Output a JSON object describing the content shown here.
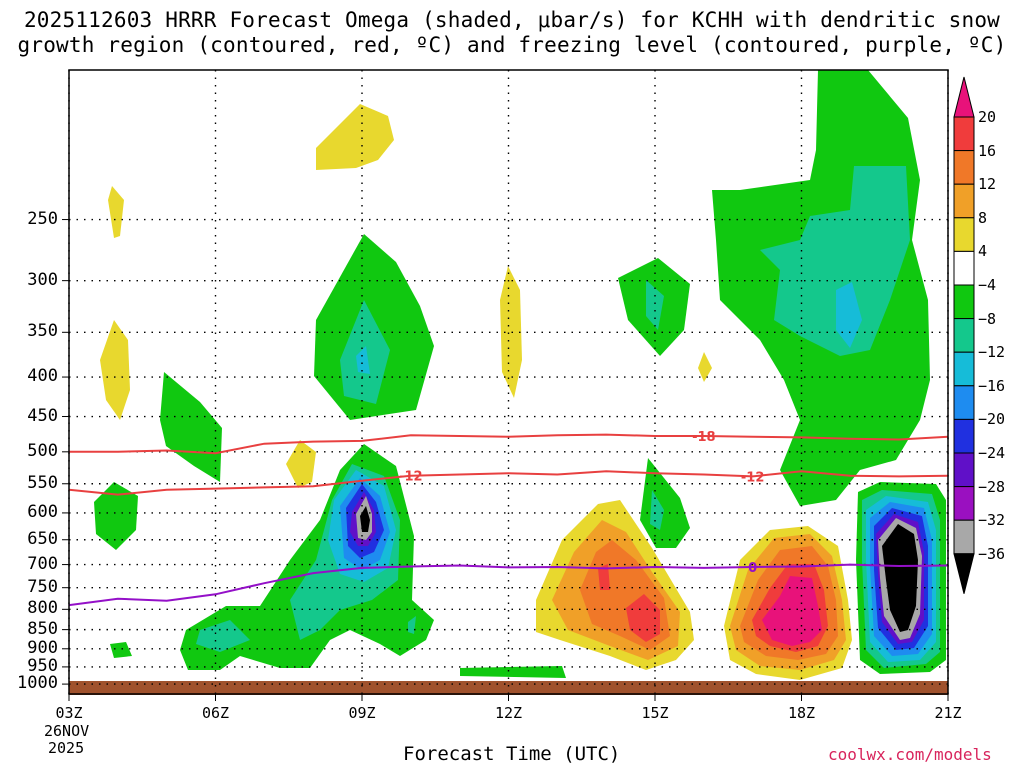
{
  "title": {
    "line1": "2025112603 HRRR Forecast Omega (shaded, μbar/s) for KCHH with dendritic snow",
    "line2": "growth region (contoured, red, ºC) and freezing level (contoured, purple, ºC)"
  },
  "footer": {
    "xlabel": "Forecast Time (UTC)",
    "date_line1": "26NOV",
    "date_line2": "2025",
    "credit": "coolwx.com/models"
  },
  "chart_data": {
    "type": "heatmap",
    "x_unit": "hours since 03Z",
    "xlim": [
      0,
      18
    ],
    "ylim_hpa": [
      1030,
      160
    ],
    "y_ticks": [
      250,
      300,
      350,
      400,
      450,
      500,
      550,
      600,
      650,
      700,
      750,
      800,
      850,
      900,
      950,
      1000
    ],
    "x_ticks": [
      {
        "h": 0,
        "label": "03Z"
      },
      {
        "h": 3,
        "label": "06Z"
      },
      {
        "h": 6,
        "label": "09Z"
      },
      {
        "h": 9,
        "label": "12Z"
      },
      {
        "h": 12,
        "label": "15Z"
      },
      {
        "h": 15,
        "label": "18Z"
      },
      {
        "h": 18,
        "label": "21Z"
      }
    ],
    "colorbar": {
      "levels": [
        -36,
        -32,
        -28,
        -24,
        -20,
        -16,
        -12,
        -8,
        -4,
        4,
        8,
        12,
        16,
        20
      ],
      "labels": [
        "20",
        "16",
        "12",
        "8",
        "4",
        "−4",
        "−8",
        "−12",
        "−16",
        "−20",
        "−24",
        "−28",
        "−32",
        "−36"
      ],
      "colors": {
        "gt20": "#e8127a",
        "16_20": "#f03c3c",
        "12_16": "#f07828",
        "8_12": "#f0a028",
        "4_8": "#e8d82e",
        "m4_4": "#ffffff",
        "m8_m4": "#10c810",
        "m12_m8": "#14c88c",
        "m16_m12": "#16bcd8",
        "m20_m16": "#1e8cf0",
        "m24_m20": "#2030e0",
        "m28_m24": "#6010c8",
        "m32_m28": "#9a10c0",
        "m36_m32": "#a8a8a8",
        "lt36": "#000000"
      }
    },
    "omega_features": [
      {
        "name": "upward-motion-0900Z-mid",
        "center": {
          "h": 6.0,
          "p": 680
        },
        "max_ascent": -36
      },
      {
        "name": "upward-motion-2030Z-low",
        "center": {
          "h": 17.2,
          "p": 760
        },
        "max_ascent": -36
      },
      {
        "name": "upward-motion-1900Z-upper",
        "center": {
          "h": 16.2,
          "p": 390
        },
        "max_ascent": -16
      },
      {
        "name": "subsidence-1800Z-low",
        "center": {
          "h": 15.0,
          "p": 840
        },
        "max_descent": 24
      },
      {
        "name": "subsidence-1500Z-low",
        "center": {
          "h": 12.0,
          "p": 830
        },
        "max_descent": 20
      }
    ],
    "contours": {
      "dgz_minus18": {
        "label": "-18",
        "color": "#e84040",
        "h": [
          0,
          1,
          2,
          3,
          4,
          5,
          6,
          7,
          8,
          9,
          10,
          11,
          12,
          13,
          14,
          15,
          16,
          17,
          18
        ],
        "p": [
          500,
          500,
          498,
          502,
          488,
          485,
          484,
          476,
          477,
          478,
          476,
          475,
          477,
          477,
          478,
          479,
          481,
          482,
          478
        ]
      },
      "dgz_minus12": {
        "label": "-12",
        "color": "#e84040",
        "h": [
          0,
          1,
          2,
          3,
          4,
          5,
          6,
          7,
          8,
          9,
          10,
          11,
          12,
          13,
          14,
          15,
          16,
          17,
          18
        ],
        "p": [
          560,
          568,
          560,
          558,
          556,
          554,
          545,
          537,
          535,
          533,
          535,
          530,
          533,
          535,
          538,
          530,
          537,
          538,
          537
        ]
      },
      "freezing_level_0": {
        "label": "0",
        "color": "#9410c8",
        "h": [
          0,
          1,
          2,
          3,
          4,
          5,
          6,
          7,
          8,
          9,
          10,
          11,
          12,
          13,
          14,
          15,
          16,
          17,
          18
        ],
        "p": [
          790,
          775,
          780,
          765,
          740,
          718,
          707,
          704,
          702,
          706,
          705,
          708,
          705,
          707,
          705,
          704,
          700,
          703,
          702
        ]
      }
    }
  }
}
